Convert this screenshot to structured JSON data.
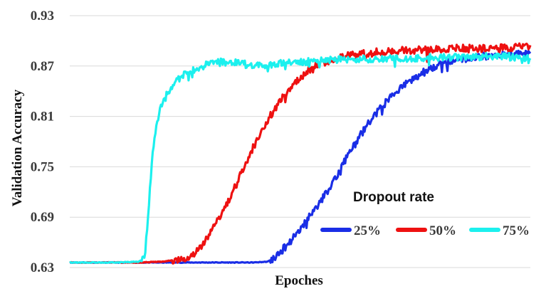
{
  "chart_data": {
    "type": "line",
    "title": "",
    "xlabel": "Epoches",
    "ylabel": "Validation Accuracy",
    "ylim": [
      0.63,
      0.93
    ],
    "xlim": [
      0,
      1000
    ],
    "yticks": [
      "0.63",
      "0.69",
      "0.75",
      "0.81",
      "0.87",
      "0.93"
    ],
    "grid": true,
    "legend": {
      "title": "Dropout rate",
      "position": "bottom-right"
    },
    "series": [
      {
        "name": "25%",
        "color": "#1a2ee6",
        "x": [
          0,
          100,
          200,
          300,
          400,
          430,
          450,
          460,
          480,
          500,
          520,
          540,
          560,
          580,
          600,
          620,
          640,
          660,
          680,
          700,
          720,
          740,
          760,
          780,
          800,
          830,
          860,
          900,
          950,
          1000
        ],
        "values": [
          0.636,
          0.636,
          0.636,
          0.636,
          0.636,
          0.637,
          0.643,
          0.65,
          0.662,
          0.676,
          0.69,
          0.705,
          0.722,
          0.74,
          0.76,
          0.778,
          0.795,
          0.81,
          0.823,
          0.835,
          0.845,
          0.852,
          0.86,
          0.866,
          0.872,
          0.876,
          0.879,
          0.882,
          0.884,
          0.886
        ]
      },
      {
        "name": "50%",
        "color": "#ee1111",
        "x": [
          0,
          100,
          150,
          200,
          230,
          260,
          280,
          300,
          320,
          340,
          360,
          380,
          400,
          420,
          440,
          460,
          480,
          500,
          520,
          540,
          570,
          600,
          650,
          700,
          750,
          800,
          850,
          900,
          950,
          1000
        ],
        "values": [
          0.636,
          0.636,
          0.636,
          0.637,
          0.639,
          0.643,
          0.652,
          0.666,
          0.684,
          0.705,
          0.727,
          0.752,
          0.775,
          0.797,
          0.815,
          0.83,
          0.845,
          0.856,
          0.866,
          0.872,
          0.878,
          0.882,
          0.886,
          0.888,
          0.889,
          0.89,
          0.891,
          0.891,
          0.892,
          0.893
        ]
      },
      {
        "name": "75%",
        "color": "#1cf0ee",
        "x": [
          0,
          100,
          150,
          160,
          165,
          170,
          175,
          180,
          190,
          200,
          210,
          220,
          240,
          260,
          280,
          300,
          320,
          340,
          360,
          380,
          400,
          440,
          480,
          520,
          560,
          600,
          700,
          800,
          900,
          1000
        ],
        "values": [
          0.636,
          0.636,
          0.637,
          0.64,
          0.655,
          0.69,
          0.73,
          0.77,
          0.805,
          0.825,
          0.835,
          0.845,
          0.856,
          0.864,
          0.868,
          0.872,
          0.874,
          0.875,
          0.874,
          0.872,
          0.871,
          0.872,
          0.874,
          0.876,
          0.877,
          0.878,
          0.879,
          0.88,
          0.881,
          0.881
        ]
      }
    ]
  }
}
